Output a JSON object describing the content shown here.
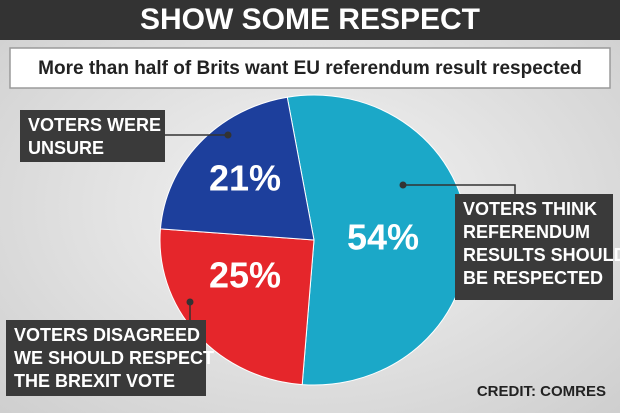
{
  "chart_data": {
    "type": "pie",
    "title": "SHOW SOME RESPECT",
    "subtitle": "More than half of Brits want EU referendum result respected",
    "categories": [
      "VOTERS THINK\nREFERENDUM\nRESULTS SHOULD\nBE RESPECTED",
      "VOTERS DISAGREED\nWE SHOULD RESPECT\nTHE BREXIT VOTE",
      "VOTERS WERE\nUNSURE"
    ],
    "values": [
      54,
      25,
      21
    ],
    "value_labels": [
      "54%",
      "25%",
      "21%"
    ],
    "colors": [
      "#1ba8c8",
      "#e5262b",
      "#1d3f9c"
    ],
    "credit": "CREDIT: COMRES"
  }
}
